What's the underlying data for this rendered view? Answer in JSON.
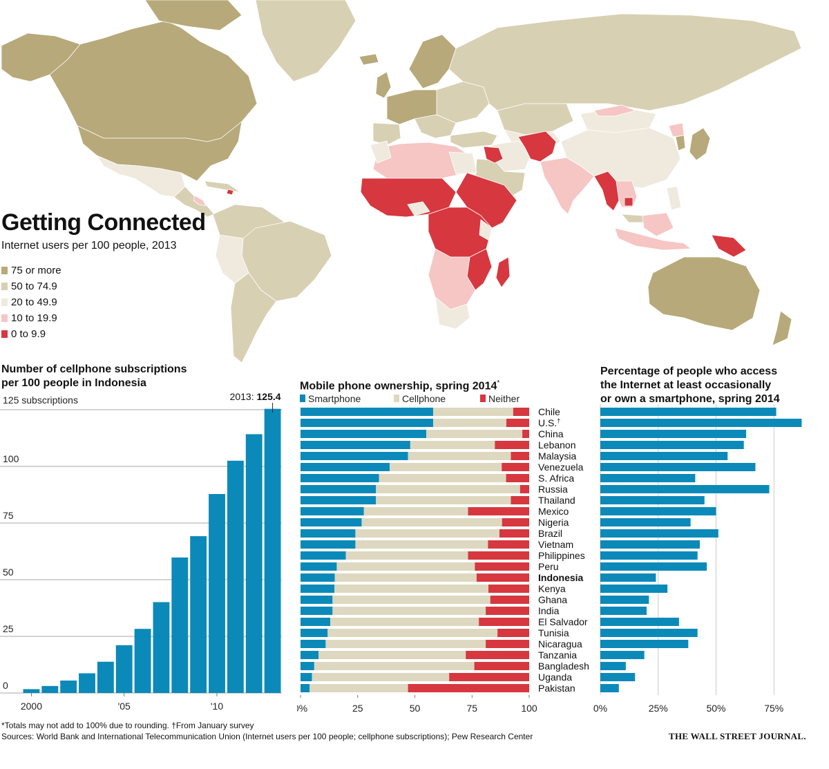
{
  "header": {
    "title": "Getting Connected",
    "subtitle": "Internet users per 100 people, 2013"
  },
  "map_legend": [
    {
      "label": "75 or more",
      "color": "#b7a97a"
    },
    {
      "label": "50 to 74.9",
      "color": "#d8d0b3"
    },
    {
      "label": "20 to 49.9",
      "color": "#efeadd"
    },
    {
      "label": "10 to 19.9",
      "color": "#f5c6c4"
    },
    {
      "label": "0 to 9.9",
      "color": "#d7373f"
    }
  ],
  "footer": {
    "footnote": "*Totals may not add to 100% due to rounding.  †From January survey",
    "sources": "Sources: World Bank and International Telecommunication Union (Internet users per 100 people; cellphone subscriptions); Pew Research Center",
    "brand": "THE WALL STREET JOURNAL."
  },
  "chart_data": [
    {
      "type": "bar",
      "title": "Number of cellphone subscriptions per 100 people in Indonesia",
      "title_lines": [
        "Number of cellphone subscriptions",
        "per 100 people in Indonesia"
      ],
      "unit_label": "125 subscriptions",
      "annotation_year": "2013:",
      "annotation_value": "125.4",
      "x_tick_labels": [
        "2000",
        "'05",
        "'10"
      ],
      "y_tick_labels": [
        "100",
        "75",
        "50",
        "25",
        "0"
      ],
      "y_ticks": [
        125,
        100,
        75,
        50,
        25,
        0
      ],
      "ylim": [
        0,
        125
      ],
      "years": [
        2000,
        2001,
        2002,
        2003,
        2004,
        2005,
        2006,
        2007,
        2008,
        2009,
        2010,
        2011,
        2012,
        2013
      ],
      "values": [
        1.7,
        3.1,
        5.5,
        8.7,
        13.8,
        21.1,
        28.3,
        40.1,
        59.8,
        69.2,
        87.8,
        102.5,
        114.2,
        125.4
      ],
      "color": "#0b8ab9"
    },
    {
      "type": "bar",
      "stacked": true,
      "title": "Mobile phone ownership, spring 2014",
      "title_mark": "*",
      "legend": [
        "Smartphone",
        "Cellphone",
        "Neither"
      ],
      "colors": [
        "#0b8ab9",
        "#ddd8bf",
        "#d7373f"
      ],
      "x_tick_labels": [
        "0%",
        "25",
        "50",
        "75",
        "100"
      ],
      "xlim": [
        0,
        100
      ],
      "highlight": "Indonesia",
      "rows": [
        {
          "country": "Chile",
          "smartphone": 58,
          "cellphone": 35,
          "neither": 7
        },
        {
          "country": "U.S.",
          "mark": "†",
          "smartphone": 58,
          "cellphone": 32,
          "neither": 10
        },
        {
          "country": "China",
          "smartphone": 55,
          "cellphone": 42,
          "neither": 3
        },
        {
          "country": "Lebanon",
          "smartphone": 48,
          "cellphone": 37,
          "neither": 15
        },
        {
          "country": "Malaysia",
          "smartphone": 47,
          "cellphone": 45,
          "neither": 8
        },
        {
          "country": "Venezuela",
          "smartphone": 39,
          "cellphone": 49,
          "neither": 12
        },
        {
          "country": "S. Africa",
          "smartphone": 34,
          "cellphone": 55,
          "neither": 10
        },
        {
          "country": "Russia",
          "smartphone": 33,
          "cellphone": 63,
          "neither": 4
        },
        {
          "country": "Thailand",
          "smartphone": 33,
          "cellphone": 59,
          "neither": 8
        },
        {
          "country": "Mexico",
          "smartphone": 28,
          "cellphone": 46,
          "neither": 27
        },
        {
          "country": "Nigeria",
          "smartphone": 27,
          "cellphone": 62,
          "neither": 12
        },
        {
          "country": "Brazil",
          "smartphone": 24,
          "cellphone": 63,
          "neither": 13
        },
        {
          "country": "Vietnam",
          "smartphone": 24,
          "cellphone": 58,
          "neither": 18
        },
        {
          "country": "Philippines",
          "smartphone": 20,
          "cellphone": 54,
          "neither": 27
        },
        {
          "country": "Peru",
          "smartphone": 16,
          "cellphone": 61,
          "neither": 24
        },
        {
          "country": "Indonesia",
          "smartphone": 15,
          "cellphone": 62,
          "neither": 23
        },
        {
          "country": "Kenya",
          "smartphone": 15,
          "cellphone": 68,
          "neither": 18
        },
        {
          "country": "Ghana",
          "smartphone": 14,
          "cellphone": 69,
          "neither": 17
        },
        {
          "country": "India",
          "smartphone": 14,
          "cellphone": 67,
          "neither": 19
        },
        {
          "country": "El Salvador",
          "smartphone": 13,
          "cellphone": 65,
          "neither": 22
        },
        {
          "country": "Tunisia",
          "smartphone": 12,
          "cellphone": 75,
          "neither": 14
        },
        {
          "country": "Nicaragua",
          "smartphone": 11,
          "cellphone": 70,
          "neither": 19
        },
        {
          "country": "Tanzania",
          "smartphone": 8,
          "cellphone": 65,
          "neither": 28
        },
        {
          "country": "Bangladesh",
          "smartphone": 6,
          "cellphone": 70,
          "neither": 24
        },
        {
          "country": "Uganda",
          "smartphone": 5,
          "cellphone": 60,
          "neither": 35
        },
        {
          "country": "Pakistan",
          "smartphone": 4,
          "cellphone": 43,
          "neither": 53
        }
      ]
    },
    {
      "type": "bar",
      "orientation": "horizontal",
      "title": "Percentage of people who access the Internet at least occasionally or own a smartphone, spring 2014",
      "title_lines": [
        "Percentage of people who access",
        "the Internet at least occasionally",
        "or own a smartphone, spring 2014"
      ],
      "x_tick_labels": [
        "0%",
        "25%",
        "50%",
        "75%"
      ],
      "xlim": [
        0,
        87
      ],
      "color": "#0b8ab9",
      "rows": [
        {
          "country": "Chile",
          "value": 76
        },
        {
          "country": "U.S.",
          "value": 87
        },
        {
          "country": "China",
          "value": 63
        },
        {
          "country": "Lebanon",
          "value": 62
        },
        {
          "country": "Malaysia",
          "value": 55
        },
        {
          "country": "Venezuela",
          "value": 67
        },
        {
          "country": "S. Africa",
          "value": 41
        },
        {
          "country": "Russia",
          "value": 73
        },
        {
          "country": "Thailand",
          "value": 45
        },
        {
          "country": "Mexico",
          "value": 50
        },
        {
          "country": "Nigeria",
          "value": 39
        },
        {
          "country": "Brazil",
          "value": 51
        },
        {
          "country": "Vietnam",
          "value": 43
        },
        {
          "country": "Philippines",
          "value": 42
        },
        {
          "country": "Peru",
          "value": 46
        },
        {
          "country": "Indonesia",
          "value": 24
        },
        {
          "country": "Kenya",
          "value": 29
        },
        {
          "country": "Ghana",
          "value": 21
        },
        {
          "country": "India",
          "value": 20
        },
        {
          "country": "El Salvador",
          "value": 34
        },
        {
          "country": "Tunisia",
          "value": 42
        },
        {
          "country": "Nicaragua",
          "value": 38
        },
        {
          "country": "Tanzania",
          "value": 19
        },
        {
          "country": "Bangladesh",
          "value": 11
        },
        {
          "country": "Uganda",
          "value": 15
        },
        {
          "country": "Pakistan",
          "value": 8
        }
      ]
    }
  ]
}
